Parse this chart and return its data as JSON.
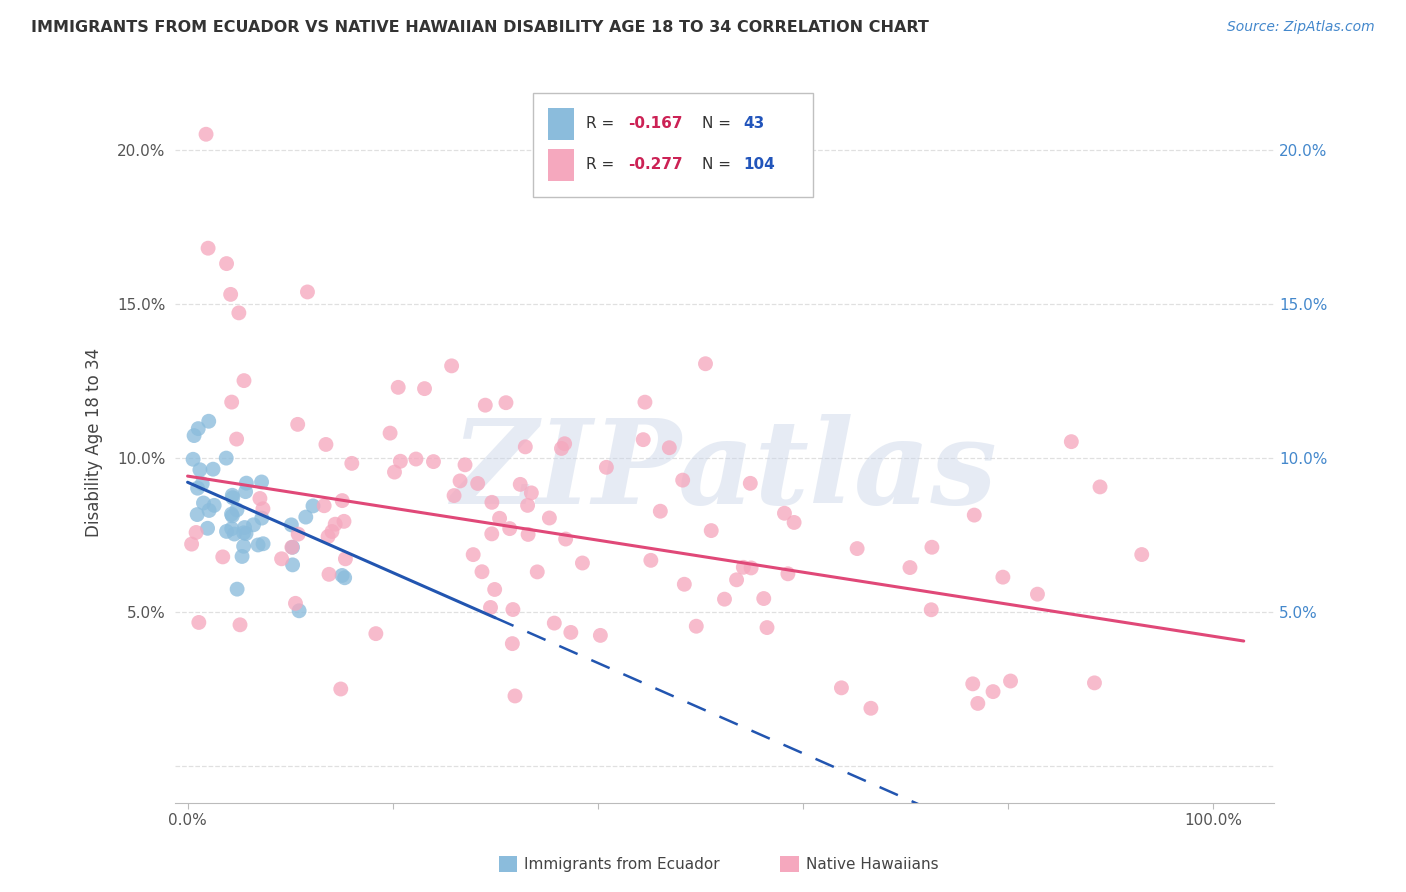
{
  "title": "IMMIGRANTS FROM ECUADOR VS NATIVE HAWAIIAN DISABILITY AGE 18 TO 34 CORRELATION CHART",
  "source": "Source: ZipAtlas.com",
  "ylabel": "Disability Age 18 to 34",
  "xlim": [
    -0.012,
    1.06
  ],
  "ylim": [
    -0.012,
    0.222
  ],
  "x_ticks": [
    0.0,
    0.2,
    0.4,
    0.6,
    0.8,
    1.0
  ],
  "x_tick_labels": [
    "0.0%",
    "",
    "",
    "",
    "",
    "100.0%"
  ],
  "y_ticks": [
    0.0,
    0.05,
    0.1,
    0.15,
    0.2
  ],
  "y_tick_labels_left": [
    "",
    "5.0%",
    "10.0%",
    "15.0%",
    "20.0%"
  ],
  "y_tick_labels_right": [
    "",
    "5.0%",
    "10.0%",
    "15.0%",
    "20.0%"
  ],
  "legend1_label": "Immigrants from Ecuador",
  "legend2_label": "Native Hawaiians",
  "r1_text": "-0.167",
  "n1_text": "43",
  "r2_text": "-0.277",
  "n2_text": "104",
  "color1": "#8bbcdc",
  "color2": "#f5a8be",
  "line1_color": "#2255b0",
  "line2_color": "#e04878",
  "watermark": "ZIPatlas",
  "bg_color": "#ffffff",
  "grid_color": "#e0e0e0",
  "title_color": "#333333",
  "source_color": "#4488cc",
  "right_tick_color": "#4488cc",
  "legend_r_color": "#cc2255",
  "legend_n_color": "#2255bb",
  "legend_text_color": "#333333",
  "line1_start_y": 0.092,
  "line1_end_y": 0.048,
  "line2_start_y": 0.094,
  "line2_end_y": 0.042,
  "line1_solid_end_x": 0.3,
  "seed1": 12,
  "seed2": 77
}
